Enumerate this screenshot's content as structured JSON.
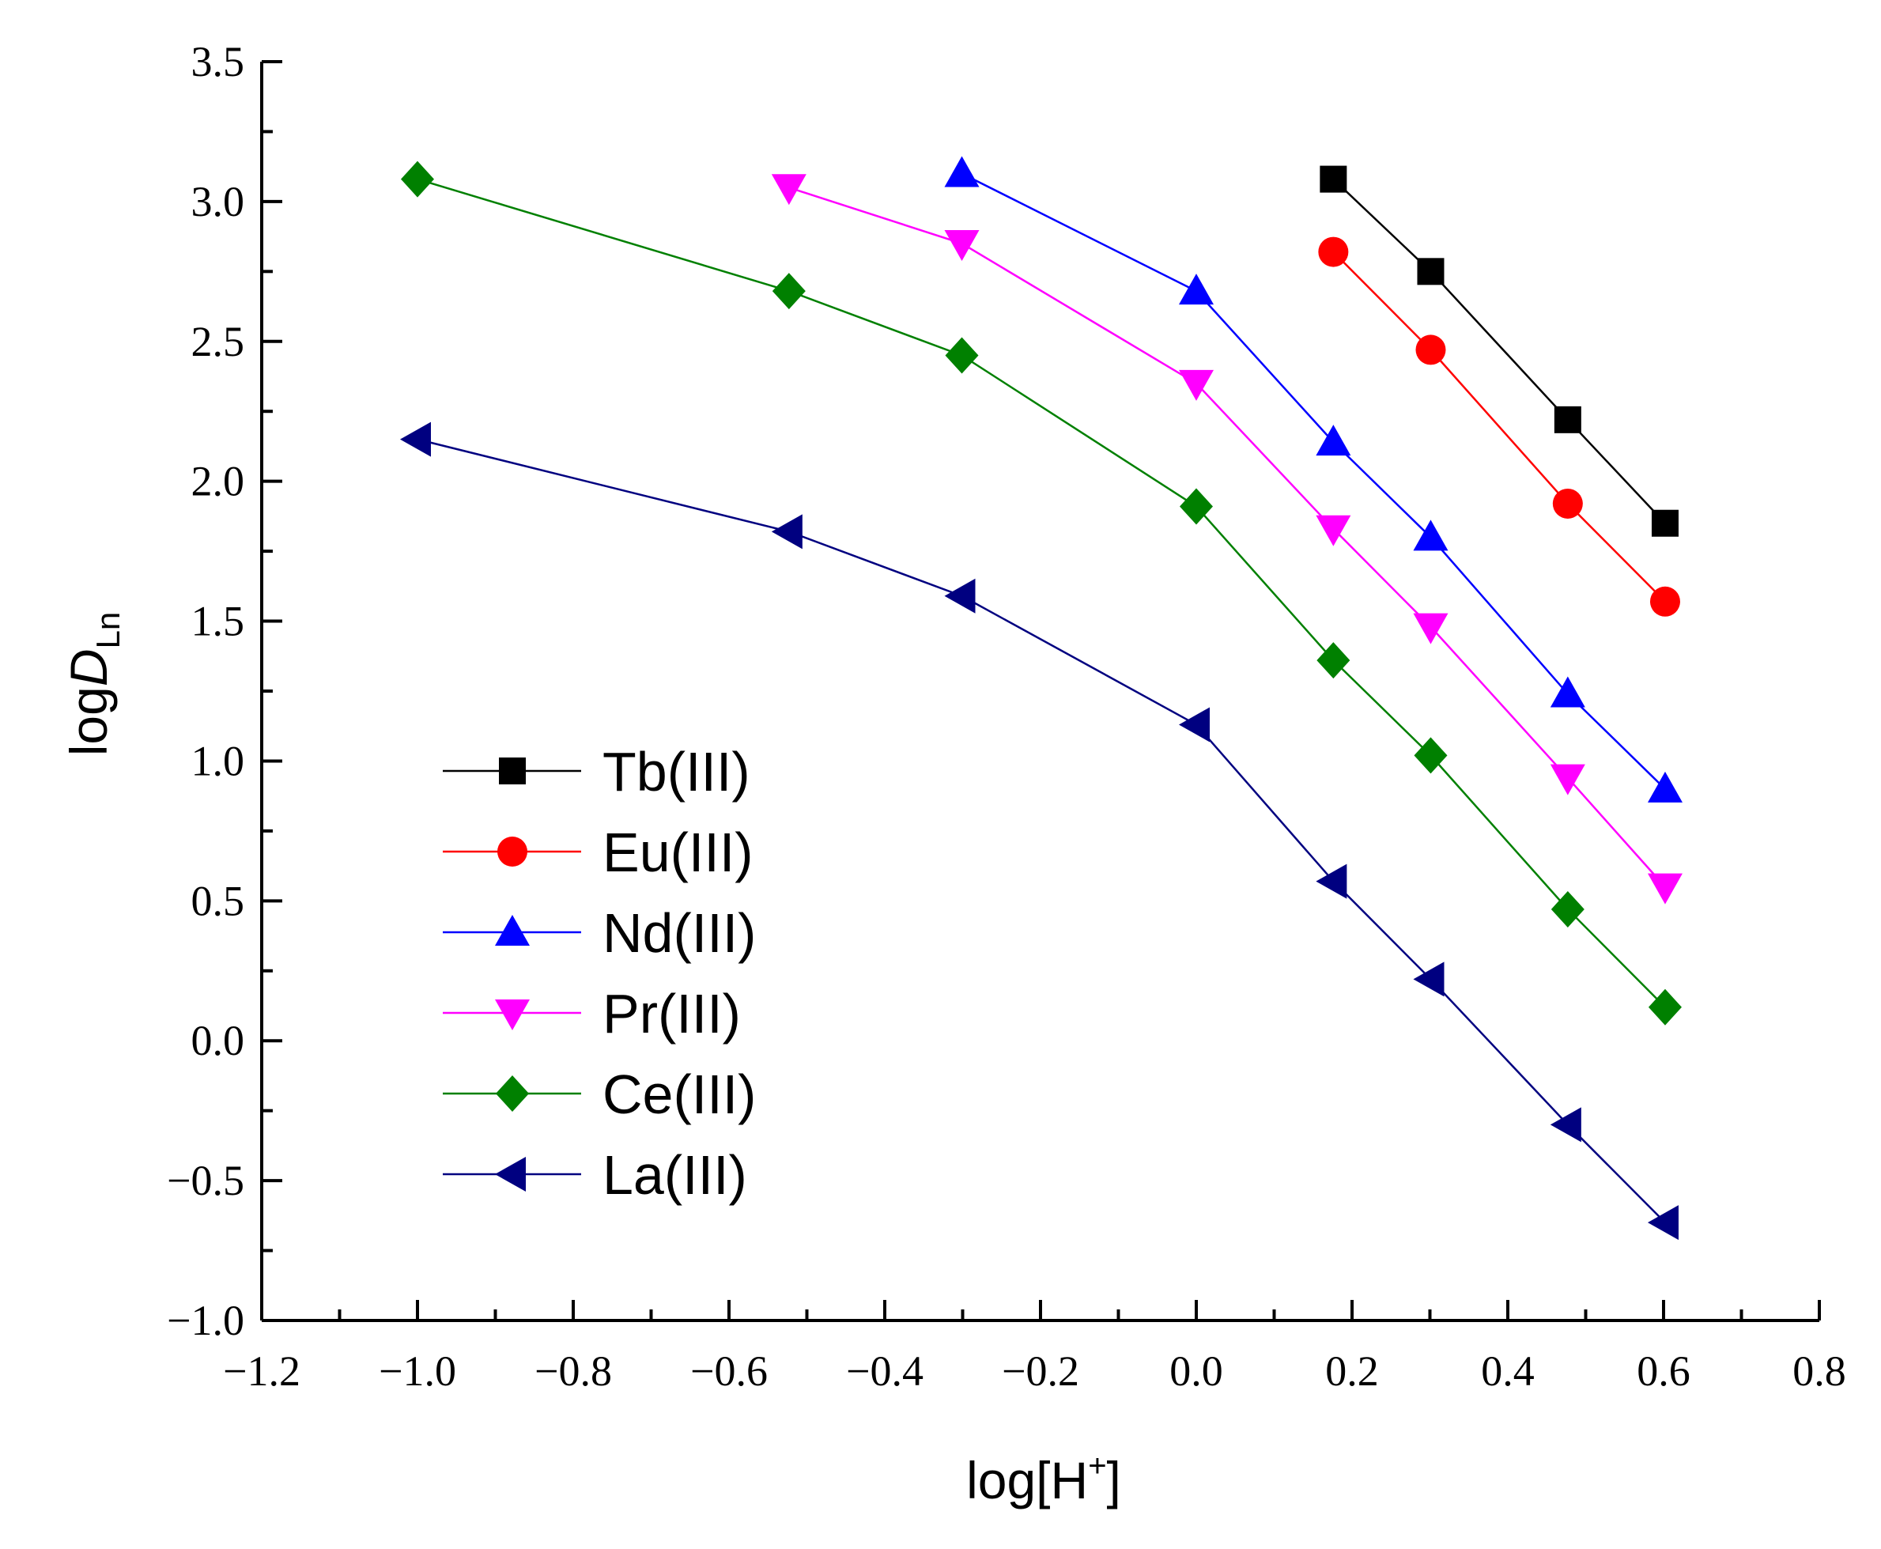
{
  "chart_data": {
    "type": "line",
    "title": "",
    "xlabel": {
      "main": "log[H",
      "sup": "+",
      "close": "]"
    },
    "ylabel": {
      "main": "log",
      "italic": "D",
      "sub": "Ln"
    },
    "xlim": [
      -1.2,
      0.8
    ],
    "ylim": [
      -1.0,
      3.5
    ],
    "x_ticks": [
      -1.2,
      -1.0,
      -0.8,
      -0.6,
      -0.4,
      -0.2,
      0.0,
      0.2,
      0.4,
      0.6,
      0.8
    ],
    "x_tick_labels": [
      "−1.2",
      "−1.0",
      "−0.8",
      "−0.6",
      "−0.4",
      "−0.2",
      "0.0",
      "0.2",
      "0.4",
      "0.6",
      "0.8"
    ],
    "y_ticks": [
      -1.0,
      -0.5,
      0.0,
      0.5,
      1.0,
      1.5,
      2.0,
      2.5,
      3.0,
      3.5
    ],
    "y_tick_labels": [
      "−1.0",
      "−0.5",
      "0.0",
      "0.5",
      "1.0",
      "1.5",
      "2.0",
      "2.5",
      "3.0",
      "3.5"
    ],
    "grid": false,
    "legend_position": "left-center",
    "series": [
      {
        "name": "Tb(III)",
        "color": "#000000",
        "marker": "square",
        "x": [
          0.176,
          0.301,
          0.477,
          0.602
        ],
        "y": [
          3.08,
          2.75,
          2.22,
          1.85
        ]
      },
      {
        "name": "Eu(III)",
        "color": "#ff0000",
        "marker": "circle",
        "x": [
          0.176,
          0.301,
          0.477,
          0.602
        ],
        "y": [
          2.82,
          2.47,
          1.92,
          1.57
        ]
      },
      {
        "name": "Nd(III)",
        "color": "#0000ff",
        "marker": "triangle-up",
        "x": [
          -0.301,
          0.0,
          0.176,
          0.301,
          0.477,
          0.602
        ],
        "y": [
          3.1,
          2.68,
          2.14,
          1.8,
          1.24,
          0.9
        ]
      },
      {
        "name": "Pr(III)",
        "color": "#ff00ff",
        "marker": "triangle-down",
        "x": [
          -0.523,
          -0.301,
          0.0,
          0.176,
          0.301,
          0.477,
          0.602
        ],
        "y": [
          3.05,
          2.85,
          2.35,
          1.83,
          1.48,
          0.94,
          0.55
        ]
      },
      {
        "name": "Ce(III)",
        "color": "#008000",
        "marker": "diamond",
        "x": [
          -1.0,
          -0.523,
          -0.301,
          0.0,
          0.176,
          0.301,
          0.477,
          0.602
        ],
        "y": [
          3.08,
          2.68,
          2.45,
          1.91,
          1.36,
          1.02,
          0.47,
          0.12
        ]
      },
      {
        "name": "La(III)",
        "color": "#000080",
        "marker": "triangle-left",
        "x": [
          -1.0,
          -0.523,
          -0.301,
          0.0,
          0.176,
          0.301,
          0.477,
          0.602
        ],
        "y": [
          2.15,
          1.82,
          1.59,
          1.13,
          0.57,
          0.22,
          -0.3,
          -0.65
        ]
      }
    ]
  }
}
